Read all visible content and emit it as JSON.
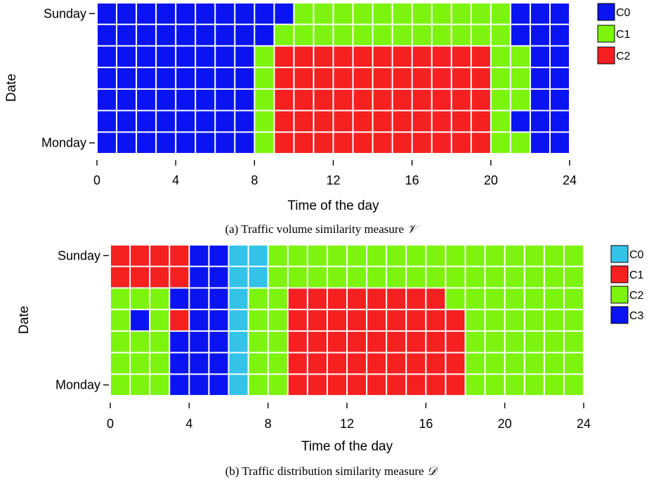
{
  "chart_data": [
    {
      "type": "heatmap",
      "xlabel": "Time of the day",
      "ylabel": "Date",
      "xticks": [
        "0",
        "4",
        "8",
        "12",
        "16",
        "20",
        "24"
      ],
      "yticks": [
        "Sunday",
        "Monday"
      ],
      "xlim": [
        0,
        24
      ],
      "caption_text": "(a) Traffic volume similarity measure",
      "caption_symbol": "𝒱",
      "legend": [
        {
          "label": "C0",
          "color": "#0a14f0"
        },
        {
          "label": "C1",
          "color": "#7cf40e"
        },
        {
          "label": "C2",
          "color": "#f52020"
        }
      ],
      "bins_per_hour": 1,
      "rows": [
        [
          0,
          0,
          0,
          0,
          0,
          0,
          0,
          0,
          0,
          0,
          1,
          1,
          1,
          1,
          1,
          1,
          1,
          1,
          1,
          1,
          1,
          0,
          0,
          0
        ],
        [
          0,
          0,
          0,
          0,
          0,
          0,
          0,
          0,
          0,
          1,
          1,
          1,
          1,
          1,
          1,
          1,
          1,
          1,
          1,
          1,
          1,
          0,
          0,
          0
        ],
        [
          0,
          0,
          0,
          0,
          0,
          0,
          0,
          0,
          1,
          2,
          2,
          2,
          2,
          2,
          2,
          2,
          2,
          2,
          2,
          2,
          1,
          1,
          0,
          0
        ],
        [
          0,
          0,
          0,
          0,
          0,
          0,
          0,
          0,
          1,
          2,
          2,
          2,
          2,
          2,
          2,
          2,
          2,
          2,
          2,
          2,
          1,
          1,
          0,
          0
        ],
        [
          0,
          0,
          0,
          0,
          0,
          0,
          0,
          0,
          1,
          2,
          2,
          2,
          2,
          2,
          2,
          2,
          2,
          2,
          2,
          2,
          1,
          1,
          0,
          0
        ],
        [
          0,
          0,
          0,
          0,
          0,
          0,
          0,
          0,
          1,
          2,
          2,
          2,
          2,
          2,
          2,
          2,
          2,
          2,
          2,
          2,
          1,
          0,
          0,
          0
        ],
        [
          0,
          0,
          0,
          0,
          0,
          0,
          0,
          0,
          1,
          2,
          2,
          2,
          2,
          2,
          2,
          2,
          2,
          2,
          2,
          2,
          1,
          1,
          0,
          0
        ]
      ]
    },
    {
      "type": "heatmap",
      "xlabel": "Time of the day",
      "ylabel": "Date",
      "xticks": [
        "0",
        "4",
        "8",
        "12",
        "16",
        "20",
        "24"
      ],
      "yticks": [
        "Sunday",
        "Monday"
      ],
      "xlim": [
        0,
        24
      ],
      "caption_text": "(b) Traffic distribution similarity measure",
      "caption_symbol": "𝒟",
      "legend": [
        {
          "label": "C0",
          "color": "#33c3e8"
        },
        {
          "label": "C1",
          "color": "#f52020"
        },
        {
          "label": "C2",
          "color": "#7cf40e"
        },
        {
          "label": "C3",
          "color": "#0a14f0"
        }
      ],
      "bins_per_hour": 1,
      "rows": [
        [
          1,
          1,
          1,
          1,
          3,
          3,
          0,
          0,
          2,
          2,
          2,
          2,
          2,
          2,
          2,
          2,
          2,
          2,
          2,
          2,
          2,
          2,
          2,
          2
        ],
        [
          1,
          1,
          1,
          1,
          3,
          3,
          0,
          0,
          2,
          2,
          2,
          2,
          2,
          2,
          2,
          2,
          2,
          2,
          2,
          2,
          2,
          2,
          2,
          2
        ],
        [
          2,
          2,
          2,
          3,
          3,
          3,
          0,
          2,
          2,
          1,
          1,
          1,
          1,
          1,
          1,
          1,
          1,
          2,
          2,
          2,
          2,
          2,
          2,
          2
        ],
        [
          2,
          3,
          2,
          1,
          3,
          3,
          0,
          2,
          2,
          1,
          1,
          1,
          1,
          1,
          1,
          1,
          1,
          1,
          2,
          2,
          2,
          2,
          2,
          2
        ],
        [
          2,
          2,
          2,
          3,
          3,
          3,
          0,
          2,
          2,
          1,
          1,
          1,
          1,
          1,
          1,
          1,
          1,
          1,
          2,
          2,
          2,
          2,
          2,
          2
        ],
        [
          2,
          2,
          2,
          3,
          3,
          3,
          0,
          2,
          2,
          1,
          1,
          1,
          1,
          1,
          1,
          1,
          1,
          1,
          2,
          2,
          2,
          2,
          2,
          2
        ],
        [
          2,
          2,
          2,
          3,
          3,
          3,
          0,
          2,
          2,
          1,
          1,
          1,
          1,
          1,
          1,
          1,
          1,
          1,
          2,
          2,
          2,
          2,
          2,
          2
        ]
      ]
    }
  ]
}
